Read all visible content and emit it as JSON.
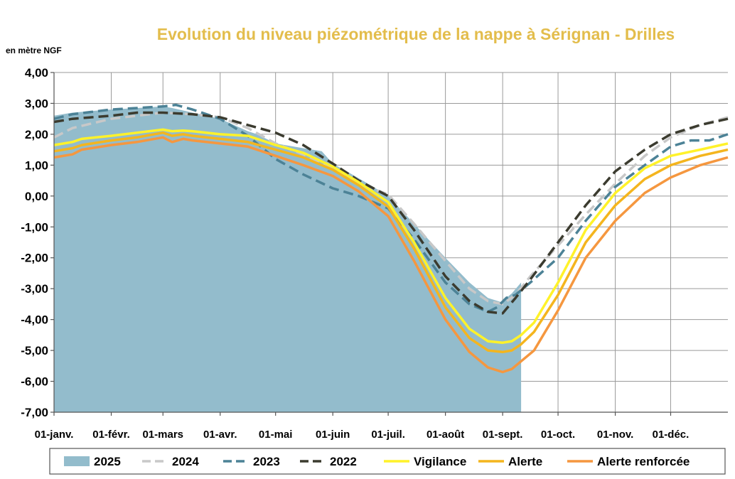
{
  "chart_data": {
    "type": "line",
    "title": "Evolution du niveau piézométrique de la nappe à Sérignan  - Drilles",
    "ylabel": "en mètre NGF",
    "ylim": [
      -7,
      4
    ],
    "y_ticks": [
      "4,00",
      "3,00",
      "2,00",
      "1,00",
      "0,00",
      "-1,00",
      "-2,00",
      "-3,00",
      "-4,00",
      "-5,00",
      "-6,00",
      "-7,00"
    ],
    "xlim": [
      0,
      365
    ],
    "x_ticks": [
      {
        "label": "01-janv.",
        "day": 0
      },
      {
        "label": "01-févr.",
        "day": 31
      },
      {
        "label": "01-mars",
        "day": 59
      },
      {
        "label": "01-avr.",
        "day": 90
      },
      {
        "label": "01-mai",
        "day": 120
      },
      {
        "label": "01-juin",
        "day": 151
      },
      {
        "label": "01-juil.",
        "day": 181
      },
      {
        "label": "01-août",
        "day": 212
      },
      {
        "label": "01-sept.",
        "day": 243
      },
      {
        "label": "01-oct.",
        "day": 273
      },
      {
        "label": "01-nov.",
        "day": 304
      },
      {
        "label": "01-déc.",
        "day": 334
      }
    ],
    "grid": true,
    "legend_position": "bottom",
    "series": [
      {
        "name": "2025",
        "style": "area",
        "color": "#93bccc",
        "x": [
          0,
          10,
          20,
          31,
          45,
          59,
          64,
          75,
          90,
          105,
          110,
          120,
          135,
          145,
          151,
          160,
          170,
          181,
          195,
          212,
          225,
          235,
          243,
          245,
          248,
          253
        ],
        "y": [
          2.6,
          2.7,
          2.75,
          2.8,
          2.85,
          2.9,
          2.85,
          2.7,
          2.5,
          2.1,
          2.0,
          1.7,
          1.55,
          1.45,
          1.05,
          0.75,
          0.4,
          0.0,
          -0.9,
          -2.0,
          -2.8,
          -3.3,
          -3.45,
          -3.3,
          -3.15,
          -2.8
        ]
      },
      {
        "name": "2024",
        "style": "dashed",
        "color": "#c8c8c8",
        "x": [
          0,
          10,
          31,
          45,
          59,
          75,
          90,
          105,
          120,
          135,
          151,
          165,
          181,
          195,
          212,
          225,
          235,
          243,
          250,
          258,
          273,
          288,
          304,
          320,
          334,
          350,
          365
        ],
        "y": [
          1.9,
          2.2,
          2.5,
          2.6,
          2.7,
          2.65,
          2.55,
          2.2,
          1.7,
          1.35,
          0.9,
          0.4,
          0.05,
          -0.9,
          -2.1,
          -3.0,
          -3.4,
          -3.5,
          -3.2,
          -2.6,
          -1.6,
          -0.6,
          0.4,
          1.3,
          1.9,
          2.3,
          2.55
        ]
      },
      {
        "name": "2023",
        "style": "dashed",
        "color": "#4c8296",
        "x": [
          0,
          10,
          31,
          45,
          59,
          66,
          75,
          90,
          105,
          120,
          135,
          151,
          165,
          181,
          195,
          212,
          225,
          235,
          240,
          245,
          250,
          258,
          273,
          288,
          304,
          320,
          334,
          345,
          355,
          365
        ],
        "y": [
          2.5,
          2.65,
          2.8,
          2.85,
          2.9,
          2.95,
          2.8,
          2.5,
          1.95,
          1.2,
          0.7,
          0.25,
          0.0,
          -0.4,
          -1.4,
          -2.8,
          -3.5,
          -3.75,
          -3.6,
          -3.3,
          -3.2,
          -2.8,
          -2.0,
          -0.8,
          0.3,
          1.0,
          1.6,
          1.8,
          1.8,
          2.0
        ]
      },
      {
        "name": "2022",
        "style": "dashed",
        "color": "#3b3b2f",
        "x": [
          0,
          10,
          31,
          45,
          59,
          75,
          90,
          105,
          120,
          135,
          151,
          165,
          181,
          195,
          212,
          225,
          235,
          243,
          250,
          258,
          273,
          288,
          304,
          320,
          334,
          350,
          365
        ],
        "y": [
          2.4,
          2.5,
          2.6,
          2.7,
          2.7,
          2.65,
          2.55,
          2.3,
          2.05,
          1.65,
          1.05,
          0.5,
          0.0,
          -1.1,
          -2.6,
          -3.4,
          -3.75,
          -3.8,
          -3.3,
          -2.7,
          -1.5,
          -0.3,
          0.8,
          1.5,
          2.0,
          2.3,
          2.5
        ]
      },
      {
        "name": "Vigilance",
        "style": "solid",
        "color": "#fff22a",
        "x": [
          0,
          10,
          15,
          31,
          45,
          59,
          64,
          70,
          75,
          90,
          105,
          120,
          135,
          151,
          165,
          181,
          195,
          212,
          225,
          235,
          243,
          248,
          253,
          260,
          273,
          288,
          304,
          320,
          334,
          350,
          365
        ],
        "y": [
          1.65,
          1.75,
          1.85,
          1.95,
          2.05,
          2.15,
          2.1,
          2.12,
          2.1,
          2.0,
          1.95,
          1.65,
          1.4,
          0.95,
          0.45,
          -0.2,
          -1.5,
          -3.3,
          -4.3,
          -4.7,
          -4.75,
          -4.7,
          -4.5,
          -4.1,
          -2.8,
          -1.1,
          0.1,
          0.9,
          1.3,
          1.5,
          1.7
        ]
      },
      {
        "name": "Alerte",
        "style": "solid",
        "color": "#f4b51e",
        "x": [
          0,
          10,
          15,
          31,
          45,
          59,
          64,
          70,
          75,
          90,
          105,
          120,
          135,
          151,
          165,
          181,
          195,
          212,
          225,
          235,
          243,
          248,
          253,
          260,
          273,
          288,
          304,
          320,
          334,
          350,
          365
        ],
        "y": [
          1.45,
          1.55,
          1.65,
          1.8,
          1.9,
          2.05,
          1.95,
          2.0,
          1.95,
          1.85,
          1.75,
          1.5,
          1.25,
          0.85,
          0.35,
          -0.35,
          -1.7,
          -3.6,
          -4.6,
          -5.0,
          -5.05,
          -5.0,
          -4.8,
          -4.4,
          -3.2,
          -1.5,
          -0.3,
          0.55,
          1.0,
          1.3,
          1.5
        ]
      },
      {
        "name": "Alerte renforcée",
        "style": "solid",
        "color": "#f5973f",
        "x": [
          0,
          10,
          15,
          31,
          45,
          59,
          64,
          70,
          75,
          90,
          105,
          120,
          135,
          151,
          165,
          181,
          195,
          212,
          225,
          235,
          243,
          248,
          253,
          260,
          273,
          288,
          304,
          320,
          334,
          350,
          365
        ],
        "y": [
          1.25,
          1.35,
          1.5,
          1.65,
          1.75,
          1.9,
          1.75,
          1.85,
          1.8,
          1.7,
          1.6,
          1.3,
          1.0,
          0.65,
          0.15,
          -0.65,
          -2.1,
          -4.0,
          -5.05,
          -5.55,
          -5.7,
          -5.6,
          -5.35,
          -5.0,
          -3.7,
          -2.0,
          -0.8,
          0.1,
          0.6,
          1.0,
          1.25
        ]
      }
    ]
  }
}
